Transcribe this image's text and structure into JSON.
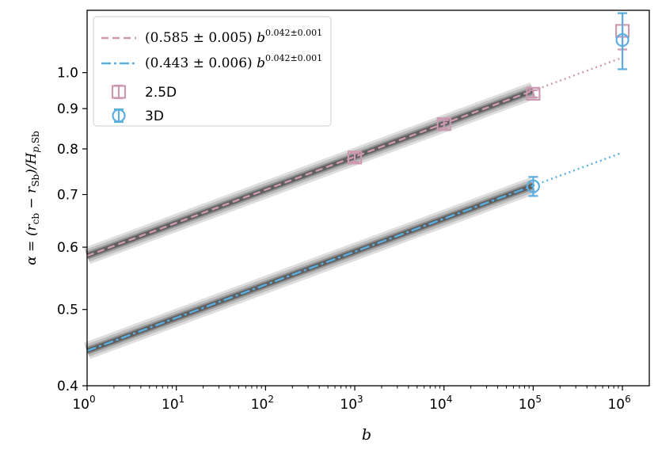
{
  "chart_data": {
    "type": "line",
    "xscale": "log",
    "yscale": "log",
    "xlim": [
      1,
      2000000
    ],
    "ylim": [
      0.4,
      1.2
    ],
    "xlabel": "b",
    "ylabel": "α = (r_cb − r_Sb)/H_p,Sb",
    "xticks": [
      1,
      10,
      100,
      1000,
      10000,
      100000,
      1000000
    ],
    "xtick_labels": [
      {
        "base": "10",
        "exp": "0"
      },
      {
        "base": "10",
        "exp": "1"
      },
      {
        "base": "10",
        "exp": "2"
      },
      {
        "base": "10",
        "exp": "3"
      },
      {
        "base": "10",
        "exp": "4"
      },
      {
        "base": "10",
        "exp": "5"
      },
      {
        "base": "10",
        "exp": "6"
      }
    ],
    "yticks": [
      0.4,
      0.5,
      0.6,
      0.7,
      0.8,
      0.9,
      1.0
    ],
    "ytick_labels": [
      "0.4",
      "0.5",
      "0.6",
      "0.7",
      "0.8",
      "0.9",
      "1.0"
    ],
    "legend_position": "top-left",
    "fits": [
      {
        "label": "(0.585 ± 0.005) b^(0.042±0.001)",
        "legend_prefix": "(0.585 ± 0.005) ",
        "legend_base": "b",
        "legend_exp": "0.042±0.001",
        "amplitude": 0.585,
        "exponent": 0.042,
        "x_range": [
          1,
          100000
        ],
        "extrapolate_to": 1000000,
        "color": "#cc99b0",
        "linestyle": "dashed"
      },
      {
        "label": "(0.443 ± 0.006) b^(0.042±0.001)",
        "legend_prefix": "(0.443 ± 0.006) ",
        "legend_base": "b",
        "legend_exp": "0.042±0.001",
        "amplitude": 0.443,
        "exponent": 0.042,
        "x_range": [
          1,
          100000
        ],
        "extrapolate_to": 1000000,
        "color": "#5aaee0",
        "linestyle": "dashdot"
      }
    ],
    "series": [
      {
        "name": "2.5D",
        "marker": "square",
        "color": "#cc99b0",
        "x": [
          1000,
          10000,
          100000,
          1000000
        ],
        "y": [
          0.78,
          0.86,
          0.94,
          1.13
        ],
        "yerr": [
          0.01,
          0.01,
          0.01,
          0.06
        ]
      },
      {
        "name": "3D",
        "marker": "circle",
        "color": "#5aaee0",
        "x": [
          100000,
          1000000
        ],
        "y": [
          0.717,
          1.1
        ],
        "yerr": [
          0.02,
          0.09
        ]
      }
    ]
  }
}
